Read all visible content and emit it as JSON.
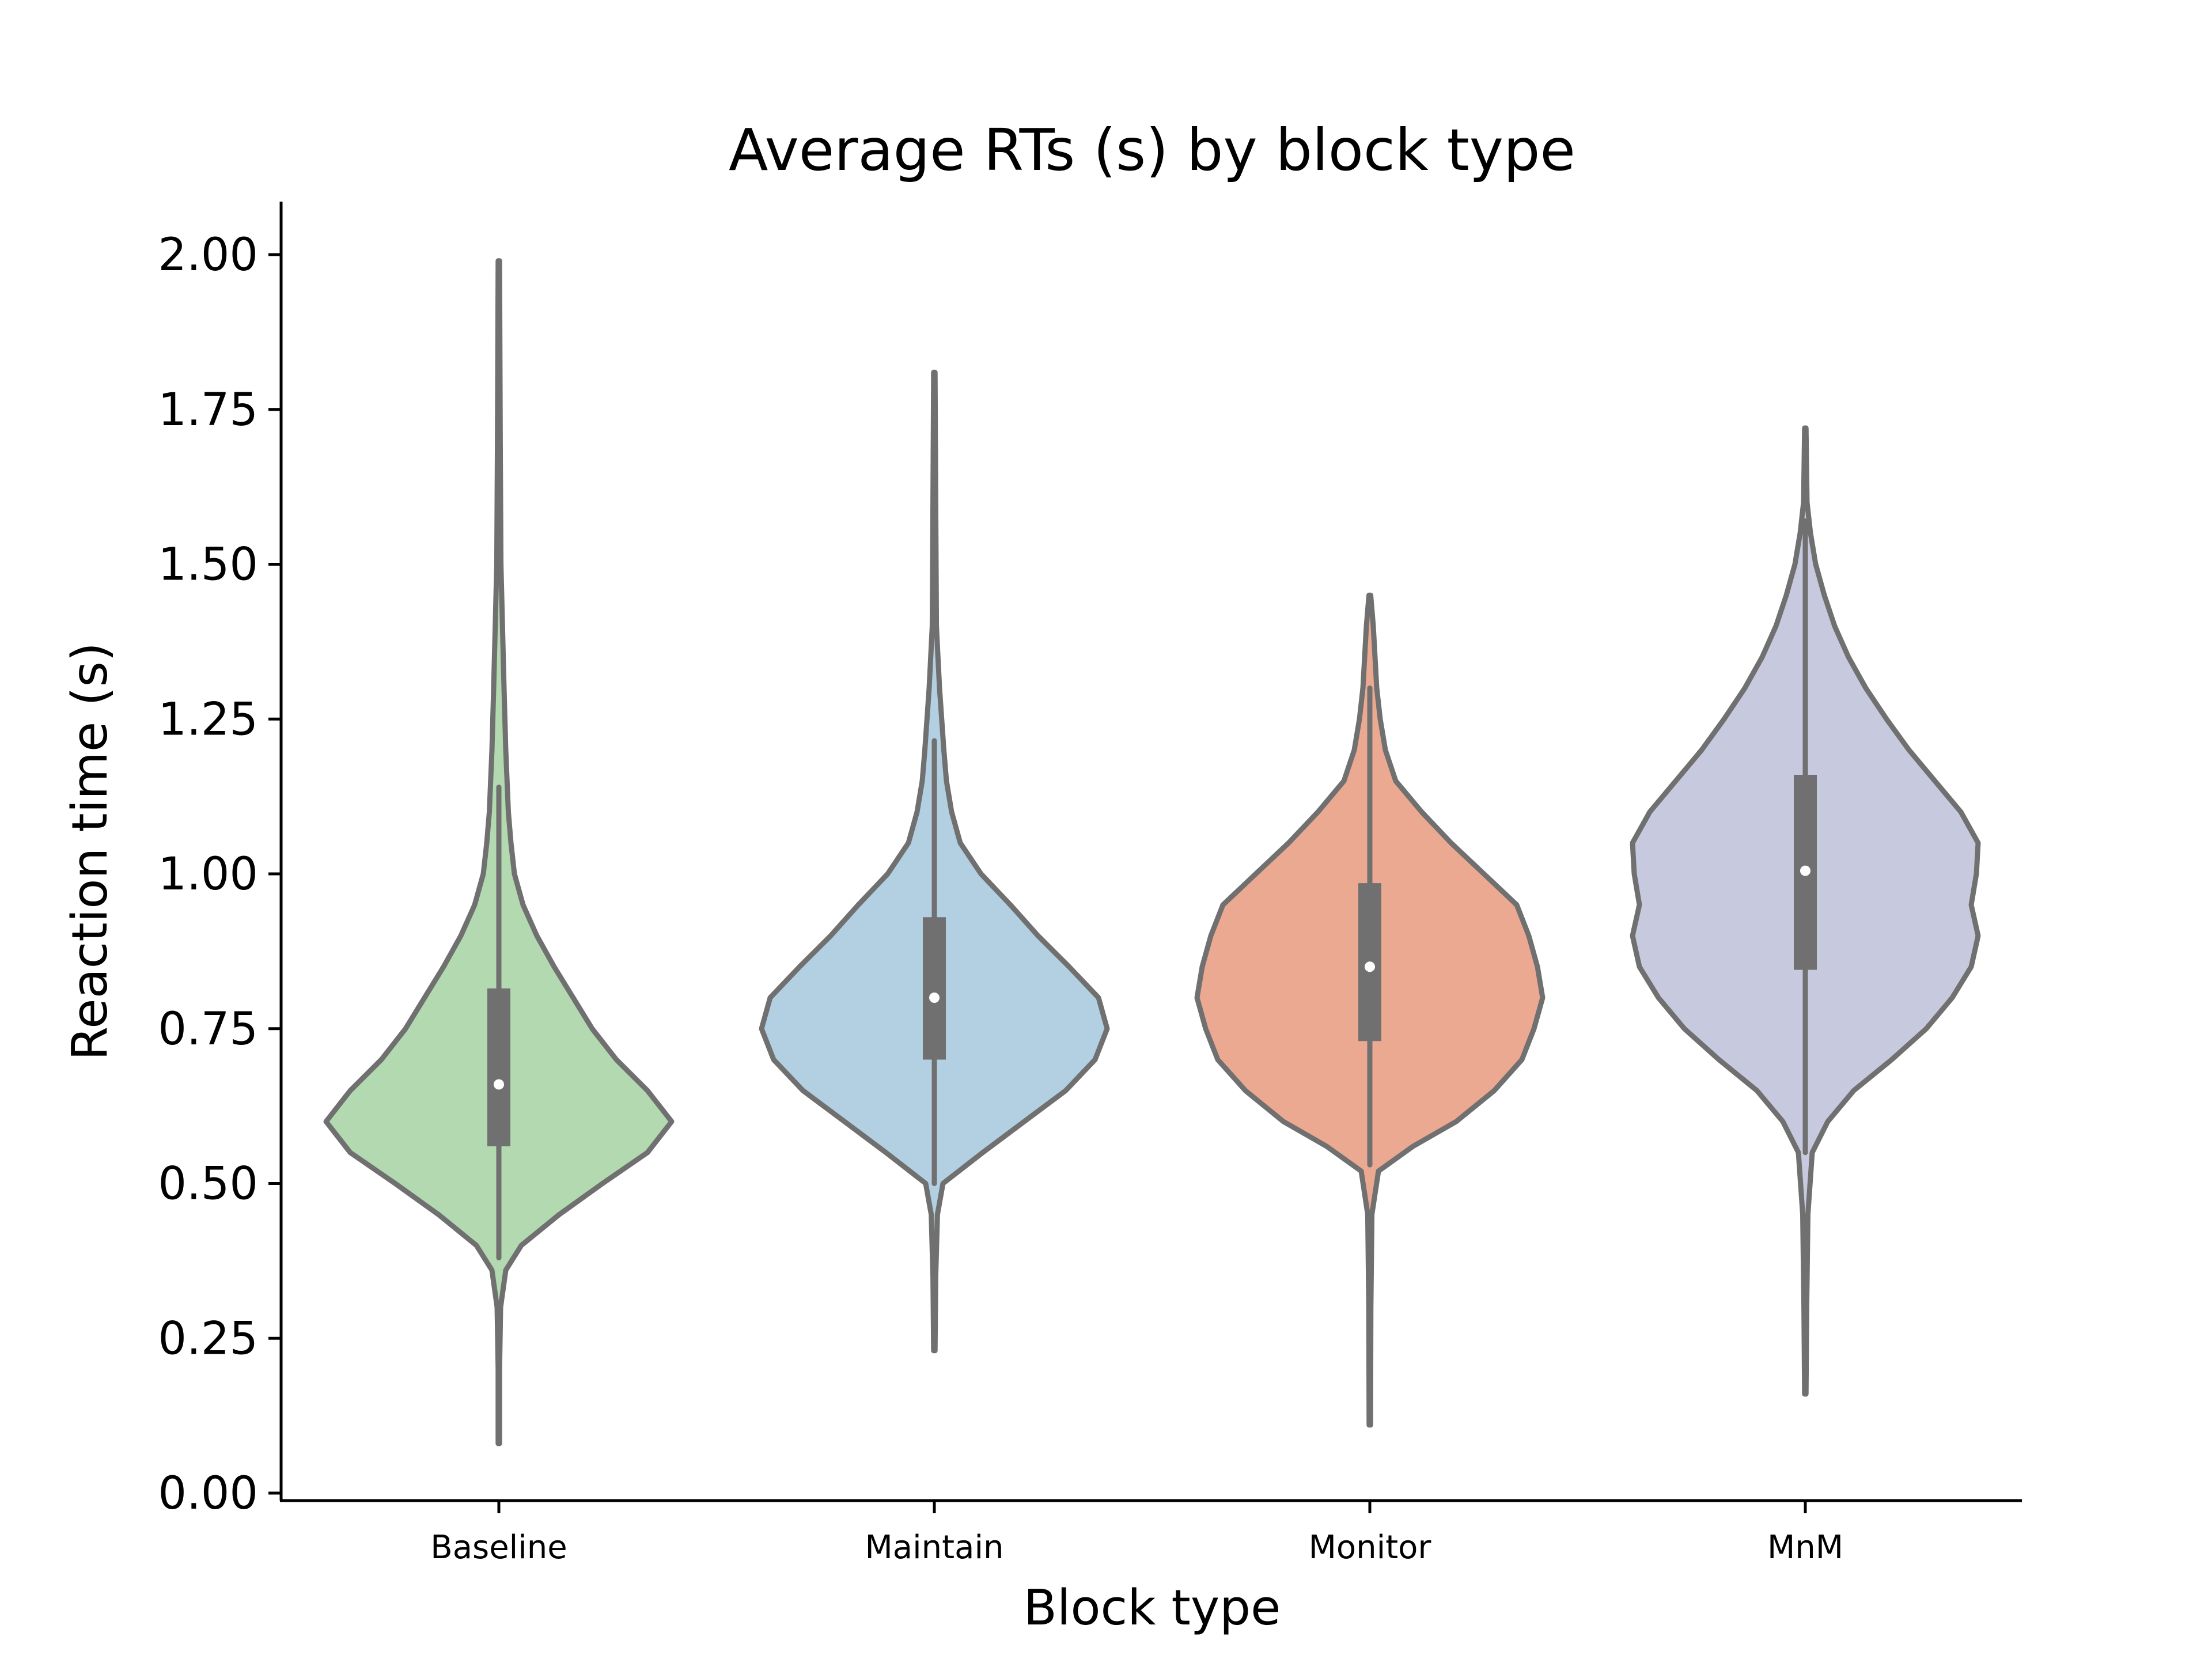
{
  "chart_data": {
    "type": "violin",
    "title": "Average RTs (s) by block type",
    "xlabel": "Block type",
    "ylabel": "Reaction time (s)",
    "ylim": [
      -0.012,
      2.085
    ],
    "yticks": [
      0.0,
      0.25,
      0.5,
      0.75,
      1.0,
      1.25,
      1.5,
      1.75,
      2.0
    ],
    "ytick_labels": [
      "0.00",
      "0.25",
      "0.50",
      "0.75",
      "1.00",
      "1.25",
      "1.50",
      "1.75",
      "2.00"
    ],
    "categories": [
      "Baseline",
      "Maintain",
      "Monitor",
      "MnM"
    ],
    "grid": false,
    "legend": "none",
    "series": [
      {
        "category": "Baseline",
        "color": "#b3d9b0",
        "q1": 0.56,
        "median": 0.66,
        "q3": 0.815,
        "whisker_low": 0.38,
        "whisker_high": 1.14,
        "min": 0.08,
        "max": 1.99,
        "density": [
          [
            0.08,
            0.003
          ],
          [
            0.2,
            0.004
          ],
          [
            0.3,
            0.01
          ],
          [
            0.36,
            0.04
          ],
          [
            0.4,
            0.13
          ],
          [
            0.45,
            0.35
          ],
          [
            0.5,
            0.6
          ],
          [
            0.55,
            0.86
          ],
          [
            0.6,
            1.0
          ],
          [
            0.65,
            0.86
          ],
          [
            0.7,
            0.68
          ],
          [
            0.75,
            0.54
          ],
          [
            0.8,
            0.43
          ],
          [
            0.85,
            0.32
          ],
          [
            0.9,
            0.22
          ],
          [
            0.95,
            0.14
          ],
          [
            1.0,
            0.09
          ],
          [
            1.05,
            0.07
          ],
          [
            1.1,
            0.055
          ],
          [
            1.2,
            0.04
          ],
          [
            1.3,
            0.03
          ],
          [
            1.5,
            0.012
          ],
          [
            1.7,
            0.008
          ],
          [
            1.99,
            0.003
          ]
        ]
      },
      {
        "category": "Maintain",
        "color": "#b3cfe2",
        "q1": 0.7,
        "median": 0.8,
        "q3": 0.93,
        "whisker_low": 0.5,
        "whisker_high": 1.215,
        "min": 0.23,
        "max": 1.81,
        "density": [
          [
            0.23,
            0.003
          ],
          [
            0.35,
            0.008
          ],
          [
            0.45,
            0.018
          ],
          [
            0.5,
            0.05
          ],
          [
            0.55,
            0.28
          ],
          [
            0.6,
            0.52
          ],
          [
            0.65,
            0.76
          ],
          [
            0.7,
            0.93
          ],
          [
            0.75,
            1.0
          ],
          [
            0.8,
            0.95
          ],
          [
            0.85,
            0.78
          ],
          [
            0.9,
            0.6
          ],
          [
            0.95,
            0.44
          ],
          [
            1.0,
            0.27
          ],
          [
            1.05,
            0.15
          ],
          [
            1.1,
            0.1
          ],
          [
            1.15,
            0.07
          ],
          [
            1.2,
            0.055
          ],
          [
            1.3,
            0.03
          ],
          [
            1.4,
            0.012
          ],
          [
            1.6,
            0.008
          ],
          [
            1.81,
            0.003
          ]
        ]
      },
      {
        "category": "Monitor",
        "color": "#eca992",
        "q1": 0.73,
        "median": 0.85,
        "q3": 0.985,
        "whisker_low": 0.53,
        "whisker_high": 1.3,
        "min": 0.11,
        "max": 1.45,
        "density": [
          [
            0.11,
            0.003
          ],
          [
            0.3,
            0.006
          ],
          [
            0.45,
            0.012
          ],
          [
            0.52,
            0.05
          ],
          [
            0.56,
            0.25
          ],
          [
            0.6,
            0.5
          ],
          [
            0.65,
            0.72
          ],
          [
            0.7,
            0.88
          ],
          [
            0.75,
            0.95
          ],
          [
            0.8,
            1.0
          ],
          [
            0.85,
            0.97
          ],
          [
            0.9,
            0.92
          ],
          [
            0.95,
            0.85
          ],
          [
            1.0,
            0.66
          ],
          [
            1.05,
            0.47
          ],
          [
            1.1,
            0.3
          ],
          [
            1.15,
            0.15
          ],
          [
            1.2,
            0.09
          ],
          [
            1.25,
            0.06
          ],
          [
            1.3,
            0.04
          ],
          [
            1.4,
            0.02
          ],
          [
            1.45,
            0.005
          ]
        ]
      },
      {
        "category": "MnM",
        "color": "#c7cade",
        "q1": 0.845,
        "median": 1.005,
        "q3": 1.16,
        "whisker_low": 0.55,
        "whisker_high": 1.57,
        "min": 0.16,
        "max": 1.72,
        "density": [
          [
            0.16,
            0.003
          ],
          [
            0.3,
            0.008
          ],
          [
            0.45,
            0.015
          ],
          [
            0.55,
            0.04
          ],
          [
            0.6,
            0.13
          ],
          [
            0.65,
            0.28
          ],
          [
            0.7,
            0.5
          ],
          [
            0.75,
            0.7
          ],
          [
            0.8,
            0.85
          ],
          [
            0.85,
            0.96
          ],
          [
            0.9,
            1.0
          ],
          [
            0.95,
            0.96
          ],
          [
            1.0,
            0.99
          ],
          [
            1.05,
            1.0
          ],
          [
            1.1,
            0.9
          ],
          [
            1.15,
            0.75
          ],
          [
            1.2,
            0.6
          ],
          [
            1.25,
            0.47
          ],
          [
            1.3,
            0.35
          ],
          [
            1.35,
            0.25
          ],
          [
            1.4,
            0.17
          ],
          [
            1.45,
            0.11
          ],
          [
            1.5,
            0.06
          ],
          [
            1.55,
            0.03
          ],
          [
            1.6,
            0.01
          ],
          [
            1.72,
            0.003
          ]
        ]
      }
    ]
  }
}
